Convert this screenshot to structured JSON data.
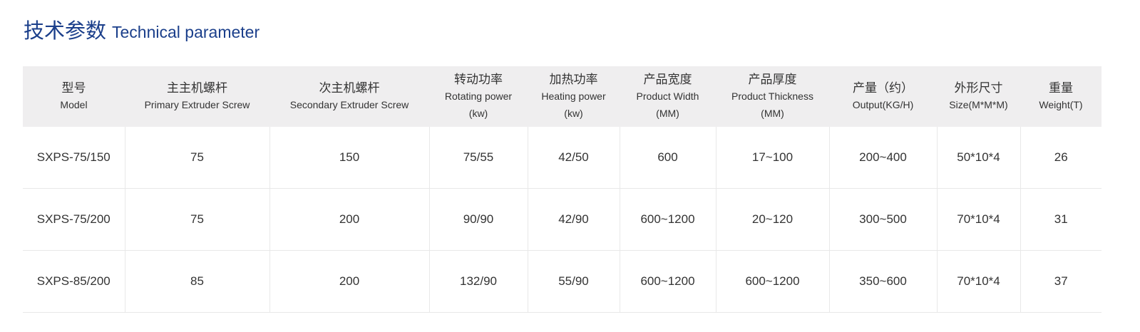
{
  "title": {
    "cn": "技术参数",
    "en": "Technical parameter"
  },
  "colors": {
    "title": "#1b3f8b",
    "header_bg": "#efeeef"
  },
  "columns": [
    {
      "cn": "型号",
      "en": "Model",
      "unit": ""
    },
    {
      "cn": "主主机螺杆",
      "en": "Primary Extruder Screw",
      "unit": ""
    },
    {
      "cn": "次主机螺杆",
      "en": "Secondary Extruder Screw",
      "unit": ""
    },
    {
      "cn": "转动功率",
      "en": "Rotating power",
      "unit": "(kw)"
    },
    {
      "cn": "加热功率",
      "en": "Heating power",
      "unit": "(kw)"
    },
    {
      "cn": "产品宽度",
      "en": "Product Width",
      "unit": "(MM)"
    },
    {
      "cn": "产品厚度",
      "en": "Product Thickness",
      "unit": "(MM)"
    },
    {
      "cn": "产量（约）",
      "en": "Output(KG/H)",
      "unit": ""
    },
    {
      "cn": "外形尺寸",
      "en": "Size(M*M*M)",
      "unit": ""
    },
    {
      "cn": "重量",
      "en": "Weight(T)",
      "unit": ""
    }
  ],
  "rows": [
    [
      "SXPS-75/150",
      "75",
      "150",
      "75/55",
      "42/50",
      "600",
      "17~100",
      "200~400",
      "50*10*4",
      "26"
    ],
    [
      "SXPS-75/200",
      "75",
      "200",
      "90/90",
      "42/90",
      "600~1200",
      "20~120",
      "300~500",
      "70*10*4",
      "31"
    ],
    [
      "SXPS-85/200",
      "85",
      "200",
      "132/90",
      "55/90",
      "600~1200",
      "600~1200",
      "350~600",
      "70*10*4",
      "37"
    ]
  ]
}
